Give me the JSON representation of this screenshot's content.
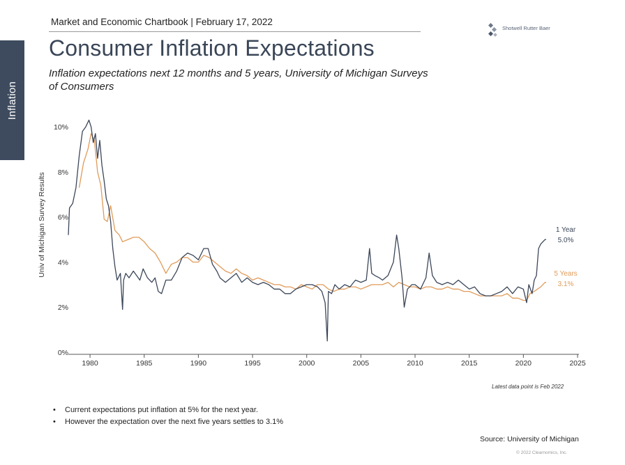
{
  "section_tab": "Inflation",
  "header": "Market and Economic Chartbook | February 17, 2022",
  "logo": {
    "name": "Shotwell Rutter Baer"
  },
  "title": "Consumer Inflation Expectations",
  "subtitle": "Inflation expectations next 12 months and 5 years, University of Michigan Surveys of Consumers",
  "note": "Latest data point is Feb 2022",
  "bullets": [
    "Current expectations put inflation at 5% for the next year.",
    "However the expectation over the next five years settles to 3.1%"
  ],
  "source": "Source: University of Michigan",
  "copyright": "© 2022 Clearnomics, Inc.",
  "chart_data": {
    "type": "line",
    "ylabel": "Univ of Michigan Survey Results",
    "xlim": [
      1978,
      2025
    ],
    "ylim": [
      0,
      10.5
    ],
    "x_ticks": [
      1980,
      1985,
      1990,
      1995,
      2000,
      2005,
      2010,
      2015,
      2020,
      2025
    ],
    "y_ticks": [
      {
        "value": 0,
        "label": "0%"
      },
      {
        "value": 2,
        "label": "2%"
      },
      {
        "value": 4,
        "label": "4%"
      },
      {
        "value": 6,
        "label": "6%"
      },
      {
        "value": 8,
        "label": "8%"
      },
      {
        "value": 10,
        "label": "10%"
      }
    ],
    "grid": false,
    "series": [
      {
        "name": "1 Year",
        "end_label": "5.0%",
        "color": "#3b4658",
        "x": [
          1978.0,
          1978.1,
          1978.4,
          1978.7,
          1979.0,
          1979.3,
          1979.6,
          1979.9,
          1980.1,
          1980.3,
          1980.5,
          1980.7,
          1980.9,
          1981.1,
          1981.3,
          1981.5,
          1981.7,
          1981.9,
          1982.1,
          1982.3,
          1982.5,
          1982.8,
          1983.0,
          1983.1,
          1983.3,
          1983.6,
          1984.0,
          1984.3,
          1984.6,
          1984.9,
          1985.3,
          1985.7,
          1986.0,
          1986.3,
          1986.6,
          1987.0,
          1987.5,
          1988.0,
          1988.5,
          1989.0,
          1989.5,
          1990.0,
          1990.5,
          1990.9,
          1991.3,
          1991.7,
          1992.0,
          1992.5,
          1993.0,
          1993.5,
          1994.0,
          1994.5,
          1995.0,
          1995.5,
          1996.0,
          1996.5,
          1997.0,
          1997.5,
          1998.0,
          1998.5,
          1999.0,
          1999.5,
          2000.0,
          2000.5,
          2001.0,
          2001.4,
          2001.7,
          2001.9,
          2002.0,
          2002.3,
          2002.6,
          2003.0,
          2003.5,
          2004.0,
          2004.5,
          2005.0,
          2005.5,
          2005.8,
          2006.0,
          2006.3,
          2006.7,
          2007.0,
          2007.5,
          2008.0,
          2008.3,
          2008.5,
          2008.8,
          2009.0,
          2009.3,
          2009.7,
          2010.0,
          2010.5,
          2011.0,
          2011.3,
          2011.6,
          2012.0,
          2012.5,
          2013.0,
          2013.5,
          2014.0,
          2014.5,
          2015.0,
          2015.5,
          2016.0,
          2016.5,
          2017.0,
          2017.5,
          2018.0,
          2018.5,
          2019.0,
          2019.5,
          2020.0,
          2020.3,
          2020.5,
          2020.8,
          2021.0,
          2021.2,
          2021.4,
          2021.6,
          2021.8,
          2022.0,
          2022.1
        ],
        "values": [
          5.2,
          6.4,
          6.6,
          7.3,
          8.7,
          9.8,
          10.0,
          10.3,
          10.0,
          9.3,
          9.7,
          8.6,
          9.4,
          8.3,
          7.6,
          6.8,
          6.5,
          5.8,
          4.6,
          3.8,
          3.2,
          3.5,
          1.9,
          3.2,
          3.5,
          3.3,
          3.6,
          3.4,
          3.2,
          3.7,
          3.3,
          3.1,
          3.3,
          2.7,
          2.6,
          3.2,
          3.2,
          3.6,
          4.2,
          4.4,
          4.3,
          4.1,
          4.6,
          4.6,
          3.9,
          3.6,
          3.3,
          3.1,
          3.3,
          3.5,
          3.1,
          3.3,
          3.1,
          3.0,
          3.1,
          3.0,
          2.8,
          2.8,
          2.6,
          2.6,
          2.8,
          2.9,
          3.0,
          3.0,
          2.9,
          2.7,
          2.2,
          0.5,
          2.7,
          2.6,
          3.0,
          2.8,
          3.0,
          2.9,
          3.2,
          3.1,
          3.2,
          4.6,
          3.5,
          3.4,
          3.3,
          3.2,
          3.4,
          4.0,
          5.2,
          4.6,
          3.3,
          2.0,
          2.8,
          3.0,
          3.0,
          2.8,
          3.3,
          4.4,
          3.4,
          3.1,
          3.0,
          3.1,
          3.0,
          3.2,
          3.0,
          2.8,
          2.9,
          2.6,
          2.5,
          2.5,
          2.6,
          2.7,
          2.9,
          2.6,
          2.9,
          2.8,
          2.2,
          3.0,
          2.6,
          3.2,
          3.4,
          4.6,
          4.8,
          4.9,
          5.0,
          5.0
        ]
      },
      {
        "name": "5 Years",
        "end_label": "3.1%",
        "color": "#e09b5a",
        "x": [
          1979.0,
          1979.4,
          1979.8,
          1980.1,
          1980.4,
          1980.7,
          1981.0,
          1981.3,
          1981.6,
          1981.9,
          1982.3,
          1982.7,
          1983.0,
          1983.5,
          1984.0,
          1984.5,
          1985.0,
          1985.5,
          1986.0,
          1986.5,
          1987.0,
          1987.5,
          1988.0,
          1988.5,
          1989.0,
          1989.5,
          1990.0,
          1990.5,
          1991.0,
          1991.5,
          1992.0,
          1992.5,
          1993.0,
          1993.5,
          1994.0,
          1994.5,
          1995.0,
          1995.5,
          1996.0,
          1996.5,
          1997.0,
          1997.5,
          1998.0,
          1998.5,
          1999.0,
          1999.5,
          2000.0,
          2000.5,
          2001.0,
          2001.5,
          2002.0,
          2002.5,
          2003.0,
          2003.5,
          2004.0,
          2004.5,
          2005.0,
          2005.5,
          2006.0,
          2006.5,
          2007.0,
          2007.5,
          2008.0,
          2008.5,
          2009.0,
          2009.5,
          2010.0,
          2010.5,
          2011.0,
          2011.5,
          2012.0,
          2012.5,
          2013.0,
          2013.5,
          2014.0,
          2014.5,
          2015.0,
          2015.5,
          2016.0,
          2016.5,
          2017.0,
          2017.5,
          2018.0,
          2018.5,
          2019.0,
          2019.5,
          2020.0,
          2020.3,
          2020.6,
          2021.0,
          2021.3,
          2021.6,
          2022.0,
          2022.1
        ],
        "values": [
          7.3,
          8.4,
          9.0,
          9.7,
          9.4,
          8.0,
          7.4,
          5.9,
          5.8,
          6.5,
          5.4,
          5.2,
          4.9,
          5.0,
          5.1,
          5.1,
          4.9,
          4.6,
          4.4,
          4.0,
          3.5,
          3.9,
          4.0,
          4.2,
          4.2,
          4.0,
          4.0,
          4.3,
          4.2,
          4.0,
          3.8,
          3.6,
          3.5,
          3.7,
          3.5,
          3.4,
          3.2,
          3.3,
          3.2,
          3.1,
          3.0,
          3.0,
          2.9,
          2.9,
          2.8,
          3.0,
          2.9,
          2.8,
          3.0,
          3.0,
          2.8,
          2.7,
          2.8,
          2.8,
          2.9,
          2.9,
          2.8,
          2.9,
          3.0,
          3.0,
          3.0,
          3.1,
          2.9,
          3.1,
          3.0,
          2.9,
          2.9,
          2.8,
          2.9,
          2.9,
          2.8,
          2.8,
          2.9,
          2.8,
          2.8,
          2.7,
          2.7,
          2.6,
          2.5,
          2.5,
          2.5,
          2.5,
          2.5,
          2.6,
          2.4,
          2.4,
          2.3,
          2.3,
          2.6,
          2.7,
          2.8,
          2.9,
          3.1,
          3.1
        ]
      }
    ]
  }
}
